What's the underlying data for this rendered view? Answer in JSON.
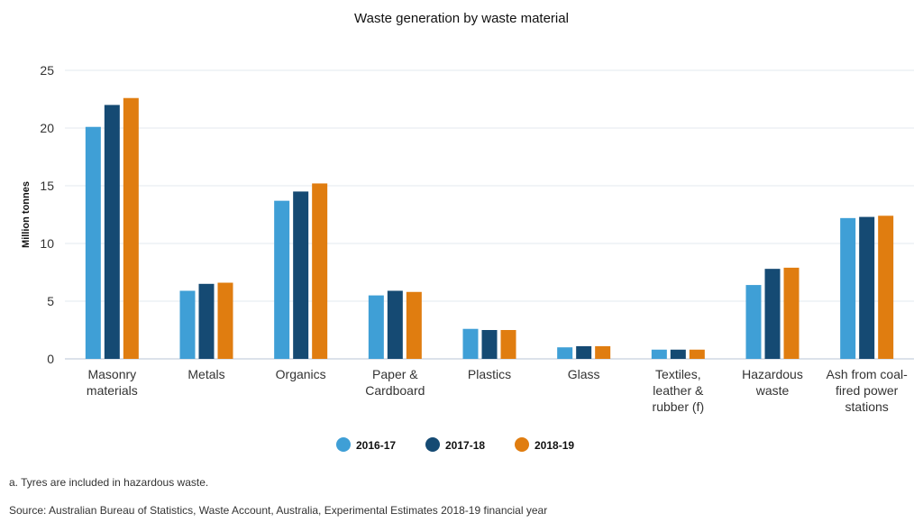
{
  "chart_data": {
    "type": "bar",
    "title": "Waste generation by waste material",
    "xlabel": "",
    "ylabel": "Million tonnes",
    "ylim": [
      0,
      25
    ],
    "yticks": [
      0,
      5,
      10,
      15,
      20,
      25
    ],
    "grid": true,
    "legend_position": "bottom",
    "categories": [
      [
        "Masonry",
        "materials"
      ],
      [
        "Metals"
      ],
      [
        "Organics"
      ],
      [
        "Paper &",
        "Cardboard"
      ],
      [
        "Plastics"
      ],
      [
        "Glass"
      ],
      [
        "Textiles,",
        "leather &",
        "rubber (f)"
      ],
      [
        "Hazardous",
        "waste"
      ],
      [
        "Ash from coal-",
        "fired power",
        "stations"
      ]
    ],
    "series": [
      {
        "name": "2016-17",
        "color": "#3f9fd6",
        "values": [
          20.1,
          5.9,
          13.7,
          5.5,
          2.6,
          1.0,
          0.8,
          6.4,
          12.2
        ]
      },
      {
        "name": "2017-18",
        "color": "#154a73",
        "values": [
          22.0,
          6.5,
          14.5,
          5.9,
          2.5,
          1.1,
          0.8,
          7.8,
          12.3
        ]
      },
      {
        "name": "2018-19",
        "color": "#e07d10",
        "values": [
          22.6,
          6.6,
          15.2,
          5.8,
          2.5,
          1.1,
          0.8,
          7.9,
          12.4
        ]
      }
    ]
  },
  "footnote": "a. Tyres are included in hazardous waste.",
  "source": "Source: Australian Bureau of Statistics, Waste Account, Australia, Experimental Estimates 2018-19 financial year"
}
